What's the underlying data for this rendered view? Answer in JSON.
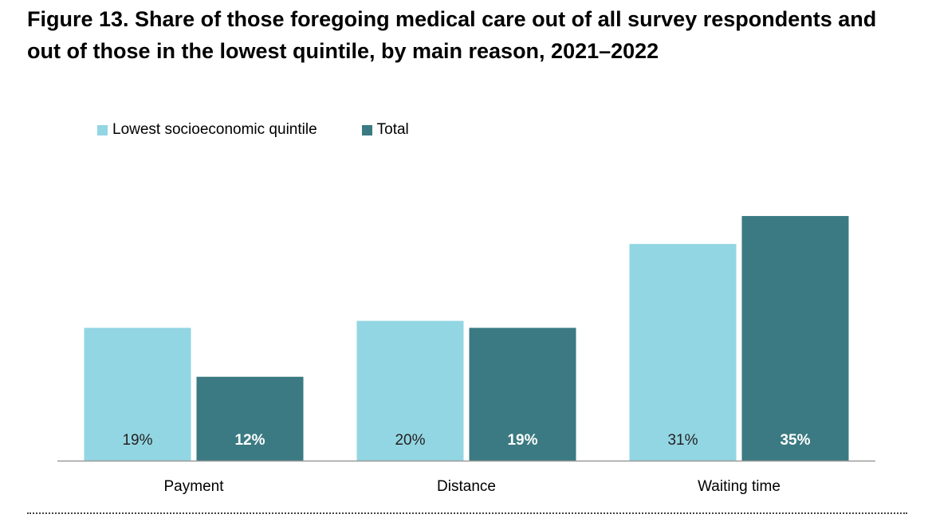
{
  "title": "Figure 13. Share of those foregoing medical care out of all survey respondents and out of those in the lowest quintile, by main reason, 2021–2022",
  "chart_data": {
    "type": "bar",
    "title": "Figure 13. Share of those foregoing medical care out of all survey respondents and out of those in the lowest quintile, by main reason, 2021–2022",
    "xlabel": "",
    "ylabel": "",
    "categories": [
      "Payment",
      "Distance",
      "Waiting time"
    ],
    "series": [
      {
        "name": "Lowest socioeconomic quintile",
        "values": [
          19,
          20,
          31
        ],
        "labels": [
          "19%",
          "20%",
          "31%"
        ],
        "color": "#93d6e3",
        "label_color": "#222222",
        "label_bold": false
      },
      {
        "name": "Total",
        "values": [
          12,
          19,
          35
        ],
        "labels": [
          "12%",
          "19%",
          "35%"
        ],
        "color": "#3b7a82",
        "label_color": "#ffffff",
        "label_bold": true
      }
    ],
    "ylim": [
      0,
      40
    ],
    "grid": false,
    "legend": "top-left",
    "value_label_position": "inside-bottom"
  }
}
